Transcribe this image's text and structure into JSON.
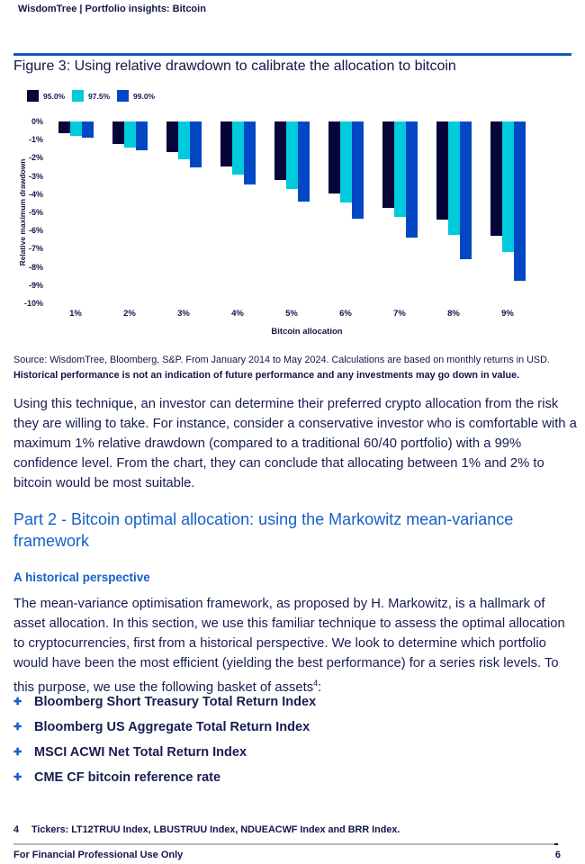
{
  "header": {
    "title": "WisdomTree | Portfolio insights: Bitcoin"
  },
  "figure": {
    "title": "Figure 3: Using relative drawdown to calibrate the allocation to bitcoin",
    "source_line1": "Source: WisdomTree, Bloomberg, S&P. From January 2014 to May 2024. Calculations are based on monthly returns in USD.",
    "source_line2": "Historical performance is not an indication of future performance and any investments may go down in value."
  },
  "chart_data": {
    "type": "bar",
    "title": "Figure 3: Using relative drawdown to calibrate the allocation to bitcoin",
    "categories": [
      "1%",
      "2%",
      "3%",
      "4%",
      "5%",
      "6%",
      "7%",
      "8%",
      "9%"
    ],
    "series": [
      {
        "name": "95.0%",
        "color": "#05053a",
        "values": [
          -0.65,
          -1.25,
          -1.7,
          -2.45,
          -3.2,
          -3.95,
          -4.75,
          -5.4,
          -6.3
        ]
      },
      {
        "name": "97.5%",
        "color": "#00cbdc",
        "values": [
          -0.8,
          -1.45,
          -2.1,
          -2.9,
          -3.7,
          -4.45,
          -5.25,
          -6.25,
          -7.2
        ]
      },
      {
        "name": "99.0%",
        "color": "#0248c4",
        "values": [
          -0.9,
          -1.6,
          -2.5,
          -3.45,
          -4.4,
          -5.35,
          -6.4,
          -7.55,
          -8.75
        ]
      }
    ],
    "xlabel": "Bitcoin allocation",
    "ylabel": "Relative maximum drawdown",
    "ylim": [
      -10,
      0
    ],
    "ytick_labels": [
      "0%",
      "-1%",
      "-2%",
      "-3%",
      "-4%",
      "-5%",
      "-6%",
      "-7%",
      "-8%",
      "-9%",
      "-10%"
    ],
    "legend_position": "top-left",
    "grid": false
  },
  "body": {
    "paragraph1": "Using this technique, an investor can determine their preferred crypto allocation from the risk they are willing to take. For instance, consider a conservative investor who is comfortable with a maximum 1% relative drawdown (compared to a traditional 60/40 portfolio) with a 99% confidence level. From the chart, they can conclude that allocating between 1% and 2% to bitcoin would be most suitable.",
    "part2_heading": "Part 2 - Bitcoin optimal allocation: using the Markowitz mean-variance framework",
    "subheading": "A historical perspective",
    "paragraph2": "The mean-variance optimisation framework, as proposed by H. Markowitz, is a hallmark of asset allocation. In this section, we use this familiar technique to assess the optimal allocation to cryptocurrencies, first from a historical perspective. We look to determine which portfolio would have been the most efficient (yielding the best performance) for a series risk levels. To this purpose, we use the following basket of assets",
    "paragraph2_footnote_marker": "4",
    "paragraph2_suffix": ":",
    "bullet_marker": "✚",
    "bullets": [
      "Bloomberg Short Treasury Total Return Index",
      "Bloomberg US Aggregate Total Return Index",
      "MSCI ACWI Net Total Return Index",
      "CME CF bitcoin reference rate"
    ]
  },
  "footnote": {
    "number": "4",
    "text": "Tickers: LT12TRUU Index, LBUSTRUU Index, NDUEACWF Index and BRR Index."
  },
  "footer": {
    "left": "For Financial Professional Use Only",
    "page_number": "6"
  },
  "colors": {
    "accent_blue": "#1359c8",
    "heading_blue": "#1560c9",
    "text_navy": "#171c52",
    "bar_navy": "#05053a",
    "bar_cyan": "#00cbdc",
    "bar_blue": "#0248c4",
    "footer_rule": "#b2b8bd",
    "background": "#ffffff"
  }
}
